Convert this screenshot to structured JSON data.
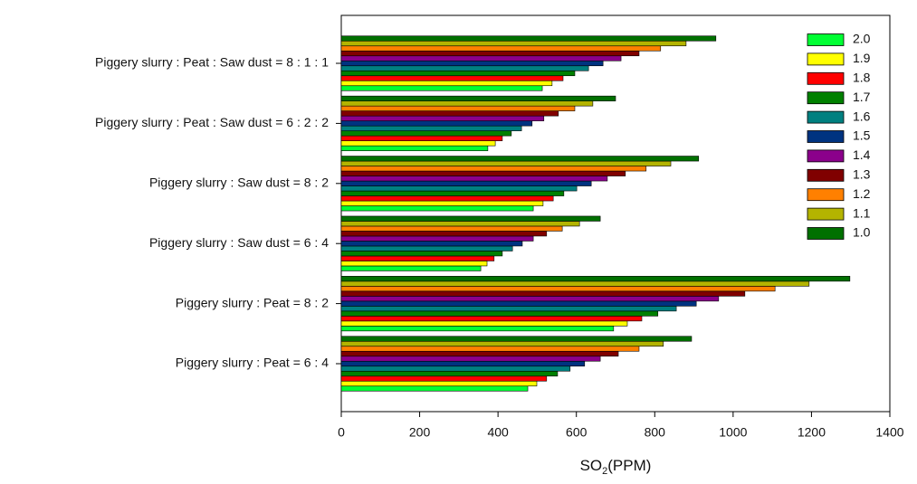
{
  "chart_data": {
    "type": "hbar",
    "categories": [
      "Piggery slurry : Peat : Saw dust = 8 : 1 : 1",
      "Piggery slurry : Peat : Saw dust = 6 : 2 : 2",
      "Piggery slurry : Saw dust = 8 : 2",
      "Piggery slurry : Saw dust = 6 : 4",
      "Piggery slurry : Peat = 8 : 2",
      "Piggery slurry : Peat = 6 : 4"
    ],
    "series": [
      {
        "name": "2.0",
        "color": "#00ff33",
        "values": [
          513,
          374,
          490,
          356,
          695,
          476
        ]
      },
      {
        "name": "1.9",
        "color": "#ffff00",
        "values": [
          538,
          393,
          515,
          372,
          730,
          499
        ]
      },
      {
        "name": "1.8",
        "color": "#ff0000",
        "values": [
          566,
          411,
          541,
          390,
          767,
          524
        ]
      },
      {
        "name": "1.7",
        "color": "#008000",
        "values": [
          596,
          434,
          568,
          411,
          808,
          552
        ]
      },
      {
        "name": "1.6",
        "color": "#008080",
        "values": [
          631,
          460,
          601,
          437,
          855,
          584
        ]
      },
      {
        "name": "1.5",
        "color": "#003380",
        "values": [
          668,
          487,
          638,
          462,
          906,
          621
        ]
      },
      {
        "name": "1.4",
        "color": "#8b008b",
        "values": [
          714,
          517,
          679,
          490,
          963,
          661
        ]
      },
      {
        "name": "1.3",
        "color": "#800000",
        "values": [
          760,
          554,
          725,
          524,
          1030,
          707
        ]
      },
      {
        "name": "1.2",
        "color": "#ff8000",
        "values": [
          815,
          596,
          778,
          564,
          1107,
          760
        ]
      },
      {
        "name": "1.1",
        "color": "#b4b400",
        "values": [
          880,
          642,
          841,
          608,
          1194,
          822
        ]
      },
      {
        "name": "1.0",
        "color": "#007000",
        "values": [
          956,
          700,
          912,
          661,
          1298,
          894
        ]
      }
    ],
    "x_label": [
      "SO",
      "2",
      "(PPM)"
    ],
    "xlim": [
      0,
      1400
    ],
    "xticks": [
      0,
      200,
      400,
      600,
      800,
      1000,
      1200,
      1400
    ],
    "legend": "upper right"
  }
}
